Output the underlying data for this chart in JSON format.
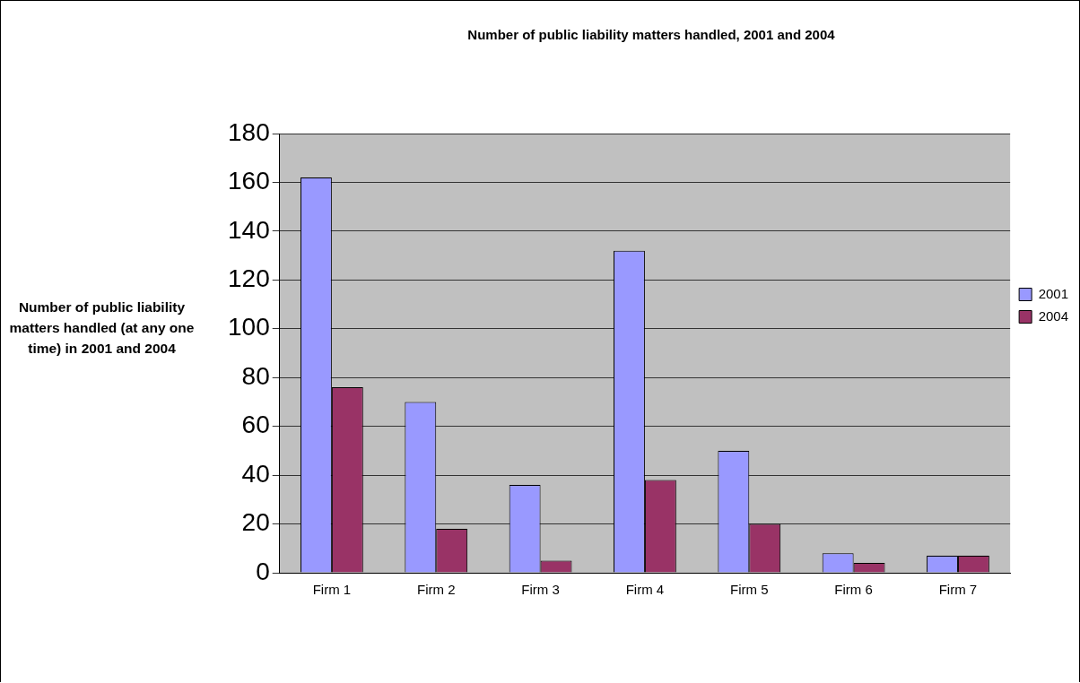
{
  "chart_data": {
    "type": "bar",
    "title": "Number of public liability matters handled, 2001 and 2004",
    "ylabel": "Number of public liability matters handled (at any one time) in 2001 and 2004",
    "categories": [
      "Firm 1",
      "Firm 2",
      "Firm 3",
      "Firm 4",
      "Firm 5",
      "Firm 6",
      "Firm 7"
    ],
    "series": [
      {
        "name": "2001",
        "color": "#9999ff",
        "values": [
          162,
          70,
          36,
          132,
          50,
          8,
          7
        ]
      },
      {
        "name": "2004",
        "color": "#993366",
        "values": [
          76,
          18,
          5,
          38,
          20,
          4,
          7
        ]
      }
    ],
    "ylim": [
      0,
      180
    ],
    "yticks": [
      0,
      20,
      40,
      60,
      80,
      100,
      120,
      140,
      160,
      180
    ],
    "grid": "y",
    "legend": "right"
  }
}
